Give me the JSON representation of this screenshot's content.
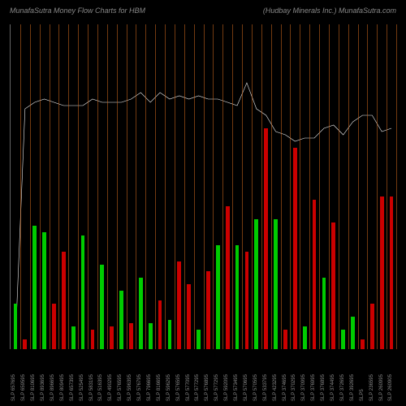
{
  "header": {
    "title_left": "MunafaSutra  Money Flow  Charts for HBM",
    "title_right": "(Hudbay Minerals Inc.) MunafaSutra.com"
  },
  "chart": {
    "type": "bar+line",
    "background_color": "#000000",
    "grid_color": "#d2691e",
    "axis_color": "#666666",
    "line_color": "#f0f0f0",
    "text_color": "#888888",
    "ylim": [
      0,
      100
    ],
    "line_ylim": [
      0,
      100
    ],
    "num_cols": 40,
    "bars": [
      {
        "h": 14,
        "c": "#00cc00"
      },
      {
        "h": 3,
        "c": "#cc0000"
      },
      {
        "h": 38,
        "c": "#00cc00"
      },
      {
        "h": 36,
        "c": "#00cc00"
      },
      {
        "h": 14,
        "c": "#cc0000"
      },
      {
        "h": 30,
        "c": "#cc0000"
      },
      {
        "h": 7,
        "c": "#00cc00"
      },
      {
        "h": 35,
        "c": "#00cc00"
      },
      {
        "h": 6,
        "c": "#cc0000"
      },
      {
        "h": 26,
        "c": "#00cc00"
      },
      {
        "h": 7,
        "c": "#cc0000"
      },
      {
        "h": 18,
        "c": "#00cc00"
      },
      {
        "h": 8,
        "c": "#cc0000"
      },
      {
        "h": 22,
        "c": "#00cc00"
      },
      {
        "h": 8,
        "c": "#00cc00"
      },
      {
        "h": 15,
        "c": "#cc0000"
      },
      {
        "h": 9,
        "c": "#00cc00"
      },
      {
        "h": 27,
        "c": "#cc0000"
      },
      {
        "h": 20,
        "c": "#cc0000"
      },
      {
        "h": 6,
        "c": "#00cc00"
      },
      {
        "h": 24,
        "c": "#cc0000"
      },
      {
        "h": 32,
        "c": "#00cc00"
      },
      {
        "h": 44,
        "c": "#cc0000"
      },
      {
        "h": 32,
        "c": "#00cc00"
      },
      {
        "h": 30,
        "c": "#cc0000"
      },
      {
        "h": 40,
        "c": "#00cc00"
      },
      {
        "h": 68,
        "c": "#cc0000"
      },
      {
        "h": 40,
        "c": "#00cc00"
      },
      {
        "h": 6,
        "c": "#cc0000"
      },
      {
        "h": 62,
        "c": "#cc0000"
      },
      {
        "h": 7,
        "c": "#00cc00"
      },
      {
        "h": 46,
        "c": "#cc0000"
      },
      {
        "h": 22,
        "c": "#00cc00"
      },
      {
        "h": 39,
        "c": "#cc0000"
      },
      {
        "h": 6,
        "c": "#00cc00"
      },
      {
        "h": 10,
        "c": "#00cc00"
      },
      {
        "h": 3,
        "c": "#cc0000"
      },
      {
        "h": 14,
        "c": "#cc0000"
      },
      {
        "h": 47,
        "c": "#cc0000"
      },
      {
        "h": 47,
        "c": "#cc0000"
      }
    ],
    "line": [
      2,
      74,
      76,
      77,
      76,
      75,
      75,
      75,
      77,
      76,
      76,
      76,
      77,
      79,
      76,
      79,
      77,
      78,
      77,
      78,
      77,
      77,
      76,
      75,
      82,
      74,
      72,
      67,
      66,
      64,
      65,
      65,
      68,
      69,
      66,
      70,
      72,
      72,
      67,
      68
    ],
    "x_labels": [
      "SLP 657695",
      "SLP 659595",
      "SLP 810695",
      "SLP 893695",
      "SLP 896695",
      "SLP 809495",
      "SLP 657395",
      "SLP 525495",
      "SLP 583195",
      "SLP 516395",
      "SLP 490295",
      "SLP 576595",
      "SLP 596395",
      "SLP 576795",
      "SLP 796695",
      "SLP 816695",
      "SLP 596295",
      "SLP 576595",
      "SLP 577095",
      "SLP 577295",
      "SLP 576895",
      "SLP 577295",
      "SLP 592095",
      "SLP 573495",
      "SLP 570695",
      "SLP 570595",
      "SLP 533795",
      "SLP 423295",
      "SLP 374695",
      "SLP 370295",
      "SLP 370995",
      "SLP 376995",
      "SLP 376895",
      "SLP 374495",
      "SLP 372695",
      "SLP 392695",
      "SLP5",
      "SLP 236595",
      "SLP 260995",
      "SLP 260905"
    ]
  }
}
